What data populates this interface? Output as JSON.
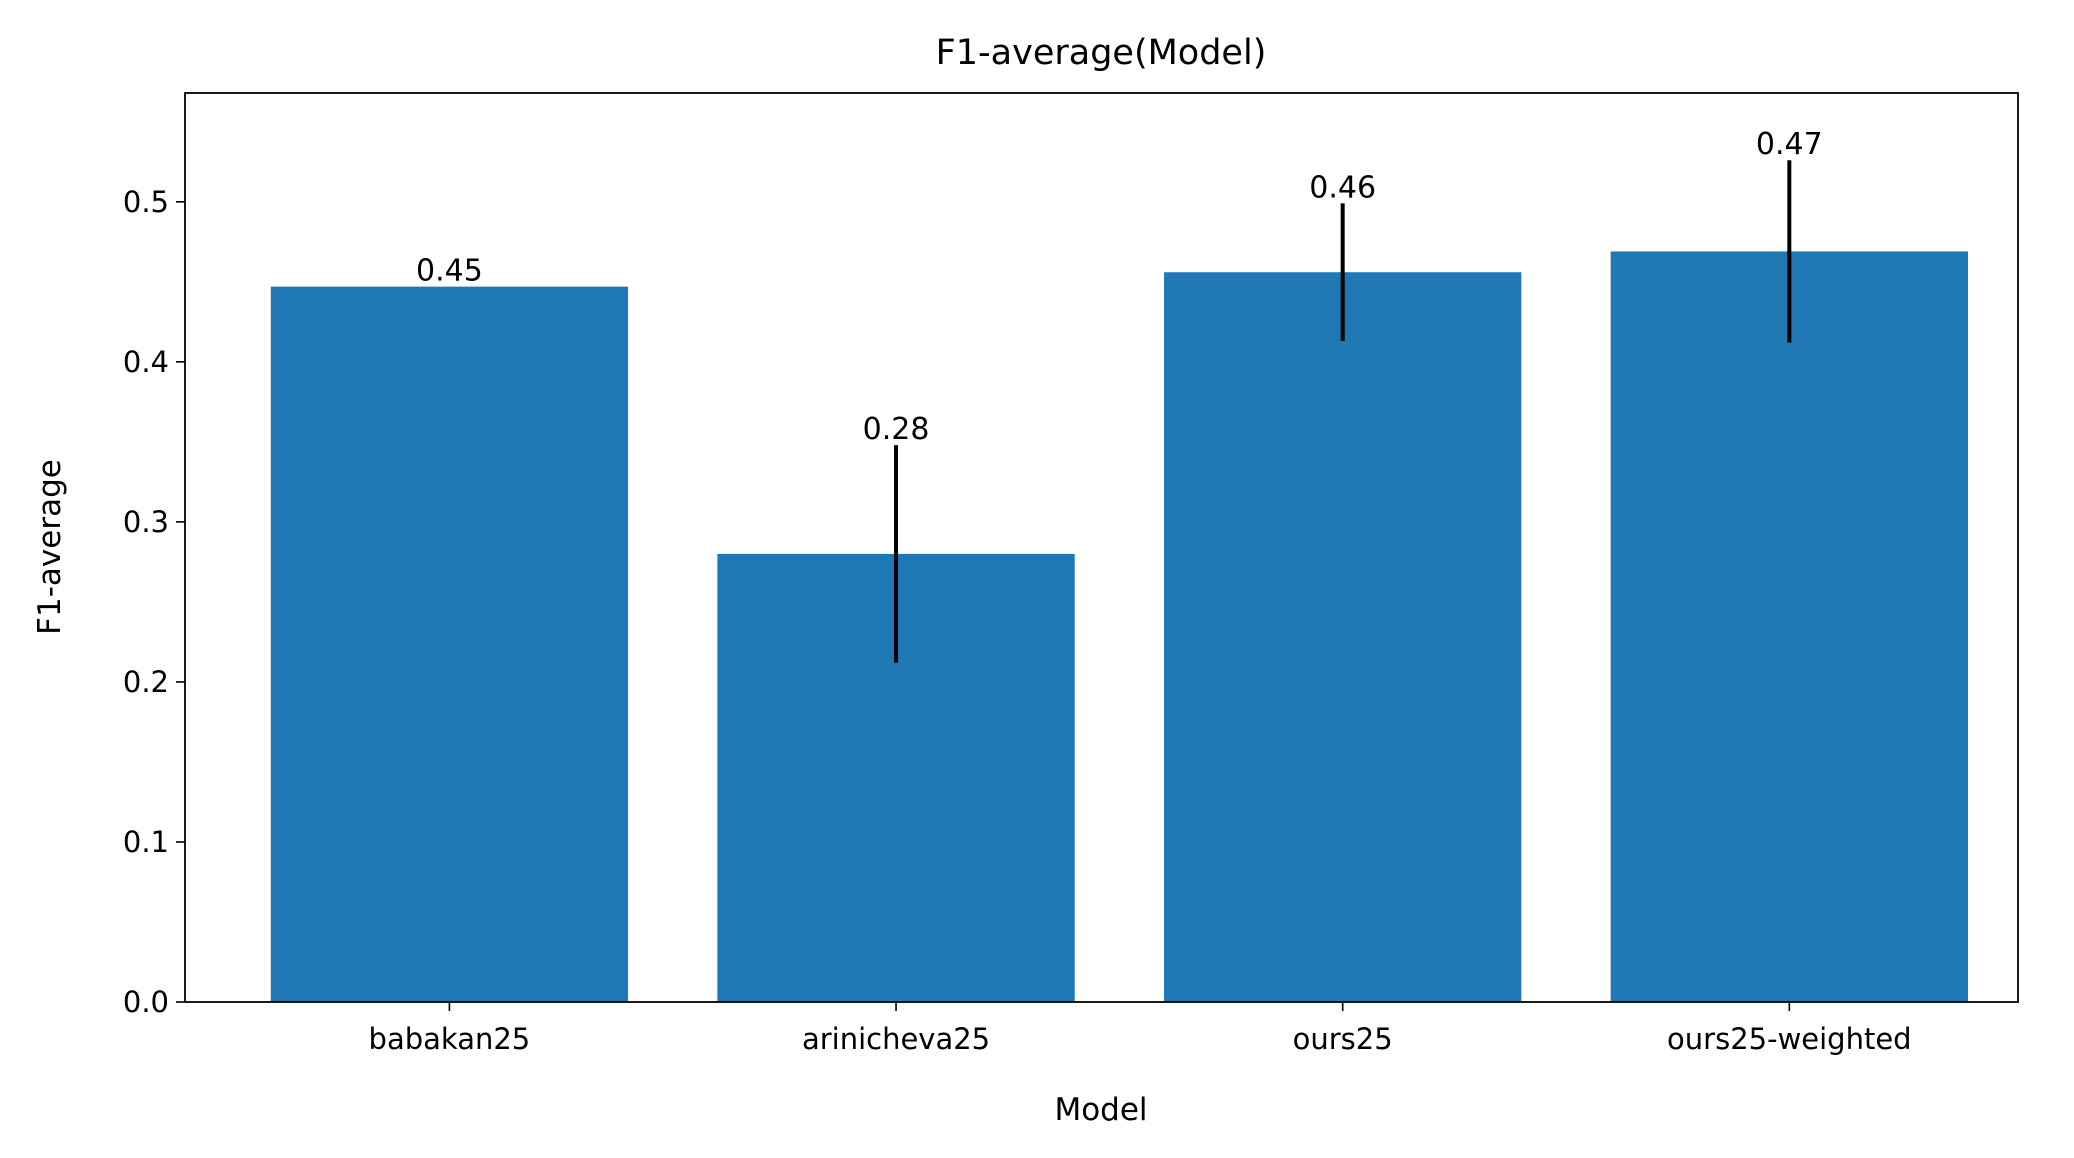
{
  "chart_data": {
    "type": "bar",
    "title": "F1-average(Model)",
    "x_label": "Model",
    "y_label": "F1-average",
    "categories": [
      "babakan25",
      "arinicheva25",
      "ours25",
      "ours25-weighted"
    ],
    "values": [
      0.447,
      0.28,
      0.456,
      0.469
    ],
    "errors": [
      null,
      0.068,
      0.043,
      0.057
    ],
    "value_labels": [
      "0.45",
      "0.28",
      "0.46",
      "0.47"
    ],
    "color": "#1f77b4",
    "error_color": "#000000",
    "ylim": [
      0,
      0.568
    ],
    "yticks": [
      {
        "value": 0,
        "label": "0.0"
      },
      0.1,
      0.2,
      0.3,
      0.4,
      0.5
    ],
    "grid": false
  }
}
